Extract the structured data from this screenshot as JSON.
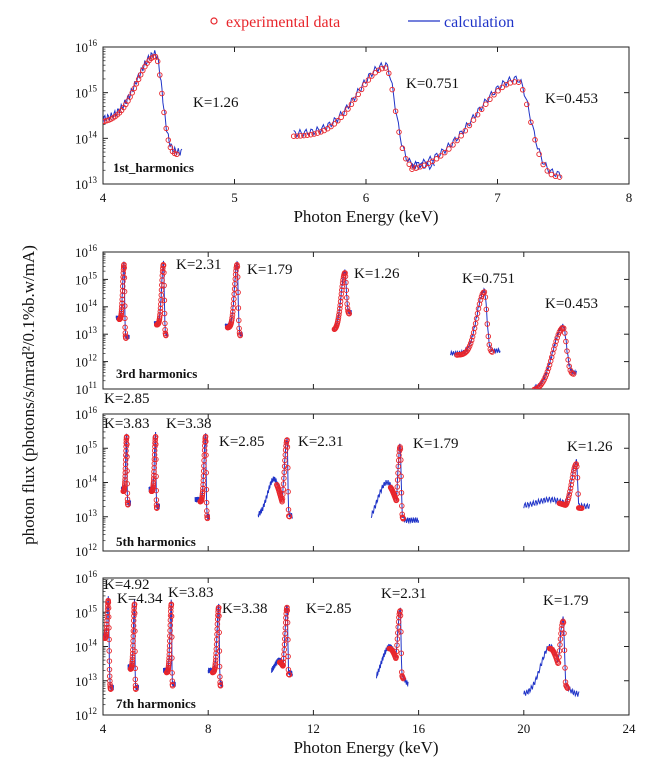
{
  "legend": {
    "experimental": "experimental data",
    "calculation": "calculation",
    "experimental_color": "#e8262c",
    "calculation_color": "#2034c8"
  },
  "ylabel": "photon flux (photons/s/mrad²/0.1%b.w/mA)",
  "chart_data": [
    {
      "type": "line",
      "panel": "1st",
      "harmonic_label": "1st_harmonics",
      "yscale": "log",
      "ylim_exp": [
        13,
        16
      ],
      "ytick_exps": [
        13,
        14,
        15,
        16
      ],
      "xlim": [
        4,
        8
      ],
      "xticks": [
        "4",
        "5",
        "6",
        "7",
        "8"
      ],
      "xlabel": "Photon Energy (keV)",
      "peaks": [
        {
          "label": "K=1.26",
          "center": 4.4,
          "lo": 3.98,
          "hi": 4.6,
          "wl": 0.2,
          "wr": 0.07,
          "log_peak": 15.85,
          "floor_left": 14.4,
          "floor_right": 13.7
        },
        {
          "label": "K=0.751",
          "center": 6.15,
          "lo": 5.45,
          "hi": 6.52,
          "wl": 0.3,
          "wr": 0.1,
          "log_peak": 15.6,
          "floor_left": 14.1,
          "floor_right": 13.4
        },
        {
          "label": "K=0.453",
          "center": 7.15,
          "lo": 6.35,
          "hi": 7.48,
          "wl": 0.45,
          "wr": 0.14,
          "log_peak": 15.3,
          "floor_left": 13.3,
          "floor_right": 13.2
        }
      ]
    },
    {
      "type": "line",
      "panel": "3rd",
      "harmonic_label": "3rd harmonics",
      "yscale": "log",
      "ylim_exp": [
        11,
        16
      ],
      "ytick_exps": [
        11,
        12,
        13,
        14,
        15,
        16
      ],
      "xlim": [
        4,
        24
      ],
      "xticks": [],
      "xlabel": "",
      "peaks": [
        {
          "label": "K=2.85",
          "center": 4.8,
          "lo": 4.5,
          "hi": 5.0,
          "wl": 0.07,
          "wr": 0.03,
          "log_peak": 15.6,
          "floor_left": 13.6,
          "floor_right": 12.9
        },
        {
          "label": "K=2.31",
          "center": 6.3,
          "lo": 5.95,
          "hi": 6.45,
          "wl": 0.1,
          "wr": 0.04,
          "log_peak": 15.6,
          "floor_left": 13.4,
          "floor_right": 13.0
        },
        {
          "label": "K=1.79",
          "center": 9.1,
          "lo": 8.65,
          "hi": 9.3,
          "wl": 0.14,
          "wr": 0.05,
          "log_peak": 15.6,
          "floor_left": 13.3,
          "floor_right": 13.0
        },
        {
          "label": "K=1.26",
          "center": 13.2,
          "lo": 12.8,
          "hi": 13.45,
          "wl": 0.2,
          "wr": 0.07,
          "log_peak": 15.3,
          "floor_left": 13.2,
          "floor_right": 13.8
        },
        {
          "label": "K=0.751",
          "center": 18.5,
          "lo": 17.2,
          "hi": 19.1,
          "wl": 0.4,
          "wr": 0.13,
          "log_peak": 14.6,
          "floor_left": 12.3,
          "floor_right": 12.4
        },
        {
          "label": "K=0.453",
          "center": 21.5,
          "lo": 20.4,
          "hi": 22.0,
          "wl": 0.55,
          "wr": 0.17,
          "log_peak": 13.3,
          "floor_left": 11.0,
          "floor_right": 11.6
        }
      ]
    },
    {
      "type": "line",
      "panel": "5th",
      "harmonic_label": "5th harmonics",
      "yscale": "log",
      "ylim_exp": [
        12,
        16
      ],
      "ytick_exps": [
        12,
        13,
        14,
        15,
        16
      ],
      "xlim": [
        4,
        24
      ],
      "xticks": [],
      "xlabel": "",
      "peaks": [
        {
          "label": "K=3.83",
          "center": 4.9,
          "lo": 4.7,
          "hi": 5.05,
          "wl": 0.05,
          "wr": 0.02,
          "log_peak": 15.4,
          "floor_left": 13.8,
          "floor_right": 13.4
        },
        {
          "label": "K=3.38",
          "center": 6.0,
          "lo": 5.75,
          "hi": 6.15,
          "wl": 0.06,
          "wr": 0.02,
          "log_peak": 15.4,
          "floor_left": 13.8,
          "floor_right": 13.3
        },
        {
          "label": "K=2.85",
          "center": 7.9,
          "lo": 7.5,
          "hi": 8.05,
          "wl": 0.08,
          "wr": 0.03,
          "log_peak": 15.4,
          "floor_left": 13.5,
          "floor_right": 13.0
        },
        {
          "label": "K=2.31",
          "center": 11.0,
          "lo": 9.9,
          "hi": 11.2,
          "wl": 0.15,
          "wr": 0.04,
          "log_peak": 15.3,
          "floor_left": 13.0,
          "floor_right": 12.8,
          "bump": {
            "center": 10.5,
            "width": 0.35,
            "log": 14.1
          }
        },
        {
          "label": "K=1.79",
          "center": 15.3,
          "lo": 14.2,
          "hi": 16.0,
          "wl": 0.14,
          "wr": 0.05,
          "log_peak": 15.1,
          "floor_left": 12.6,
          "floor_right": 12.9,
          "bump": {
            "center": 14.8,
            "width": 0.55,
            "log": 14.0
          }
        },
        {
          "label": "K=1.26",
          "center": 22.0,
          "lo": 20.0,
          "hi": 22.5,
          "wl": 0.25,
          "wr": 0.09,
          "log_peak": 14.6,
          "floor_left": 13.3,
          "floor_right": 12.4,
          "bump": {
            "center": 21.0,
            "width": 0.7,
            "log": 13.5
          }
        }
      ]
    },
    {
      "type": "line",
      "panel": "7th",
      "harmonic_label": "7th harmonics",
      "yscale": "log",
      "ylim_exp": [
        12,
        16
      ],
      "ytick_exps": [
        12,
        13,
        14,
        15,
        16
      ],
      "xlim": [
        4,
        24
      ],
      "xticks": [
        "4",
        "8",
        "12",
        "16",
        "20",
        "24"
      ],
      "xlabel": "Photon Energy (keV)",
      "peaks": [
        {
          "label": "K=4.92",
          "center": 4.2,
          "lo": 4.0,
          "hi": 4.4,
          "wl": 0.05,
          "wr": 0.04,
          "log_peak": 15.4,
          "floor_left": 14.3,
          "floor_right": 12.8
        },
        {
          "label": "K=4.34",
          "center": 5.2,
          "lo": 4.95,
          "hi": 5.35,
          "wl": 0.06,
          "wr": 0.02,
          "log_peak": 15.3,
          "floor_left": 13.4,
          "floor_right": 12.8
        },
        {
          "label": "K=3.83",
          "center": 6.6,
          "lo": 6.3,
          "hi": 6.75,
          "wl": 0.07,
          "wr": 0.02,
          "log_peak": 15.3,
          "floor_left": 13.3,
          "floor_right": 12.9
        },
        {
          "label": "K=3.38",
          "center": 8.4,
          "lo": 8.0,
          "hi": 8.55,
          "wl": 0.09,
          "wr": 0.03,
          "log_peak": 15.2,
          "floor_left": 13.3,
          "floor_right": 12.9
        },
        {
          "label": "K=2.85",
          "center": 11.0,
          "lo": 10.4,
          "hi": 11.2,
          "wl": 0.11,
          "wr": 0.04,
          "log_peak": 15.2,
          "floor_left": 13.2,
          "floor_right": 12.9,
          "bump": {
            "center": 10.7,
            "width": 0.25,
            "log": 13.6
          }
        },
        {
          "label": "K=2.31",
          "center": 15.3,
          "lo": 14.4,
          "hi": 15.6,
          "wl": 0.16,
          "wr": 0.05,
          "log_peak": 15.1,
          "floor_left": 12.8,
          "floor_right": 12.6,
          "bump": {
            "center": 14.9,
            "width": 0.45,
            "log": 14.0
          }
        },
        {
          "label": "K=1.79",
          "center": 21.5,
          "lo": 20.0,
          "hi": 22.1,
          "wl": 0.2,
          "wr": 0.07,
          "log_peak": 14.8,
          "floor_left": 12.6,
          "floor_right": 12.5,
          "bump": {
            "center": 21.0,
            "width": 0.5,
            "log": 14.0
          }
        }
      ]
    }
  ]
}
